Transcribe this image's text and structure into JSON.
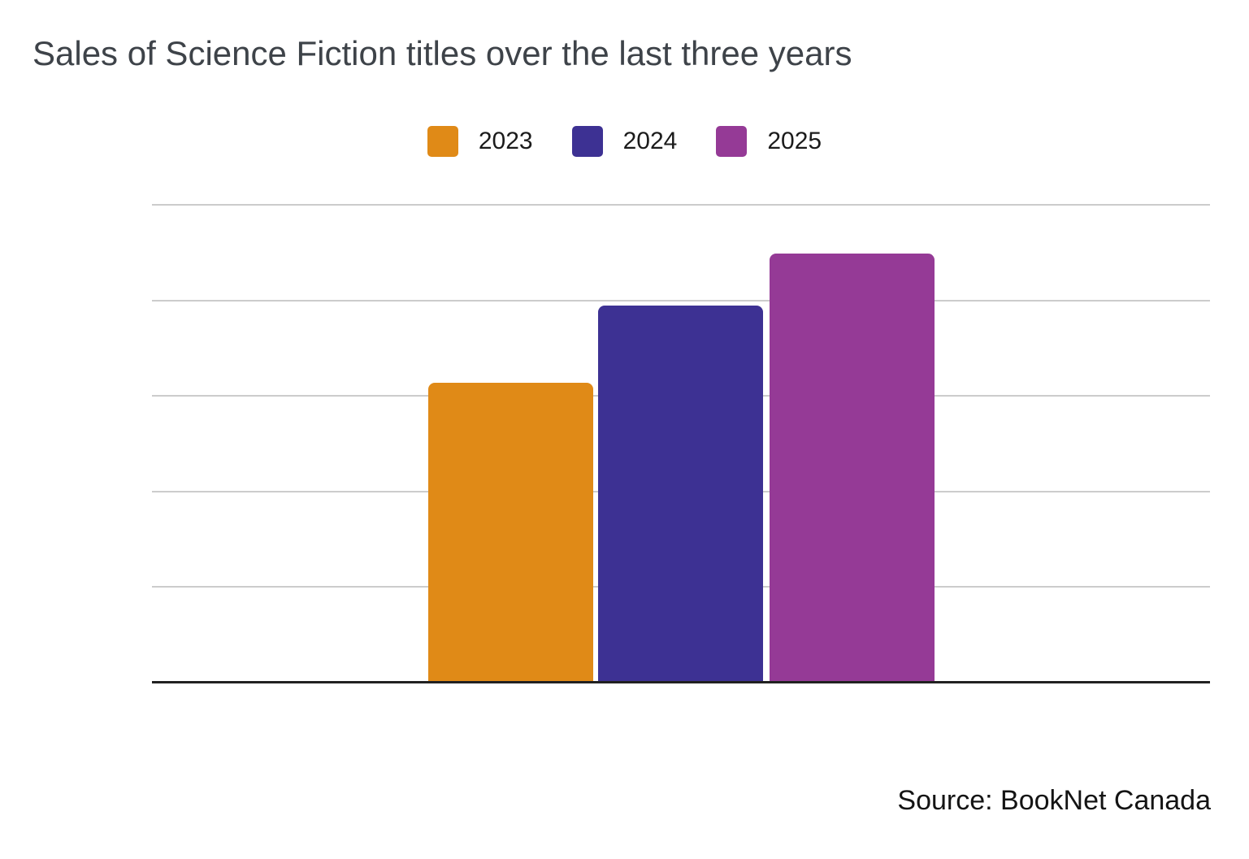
{
  "header": {
    "title": "Sales of Science Fiction titles over the last three years"
  },
  "legend": {
    "items": [
      {
        "label": "2023",
        "color": "#E08A17"
      },
      {
        "label": "2024",
        "color": "#3D3193"
      },
      {
        "label": "2025",
        "color": "#953A96"
      }
    ]
  },
  "footer": {
    "source": "Source: BookNet Canada"
  },
  "chart_data": {
    "type": "bar",
    "title": "Sales of Science Fiction titles over the last three years",
    "series": [
      {
        "name": "2023",
        "value": 63,
        "color": "#E08A17"
      },
      {
        "name": "2024",
        "value": 79,
        "color": "#3D3193"
      },
      {
        "name": "2025",
        "value": 90,
        "color": "#953A96"
      }
    ],
    "y_axis": {
      "tick_labels_visible": false,
      "gridline_values": [
        20,
        40,
        60,
        80,
        100
      ],
      "range": [
        0,
        100
      ]
    },
    "x_axis": {
      "labels_visible": false
    },
    "legend_position": "top-center",
    "grid": "horizontal",
    "baseline_color": "#212121",
    "gridline_color": "#cccccc",
    "source": "Source: BookNet Canada"
  }
}
